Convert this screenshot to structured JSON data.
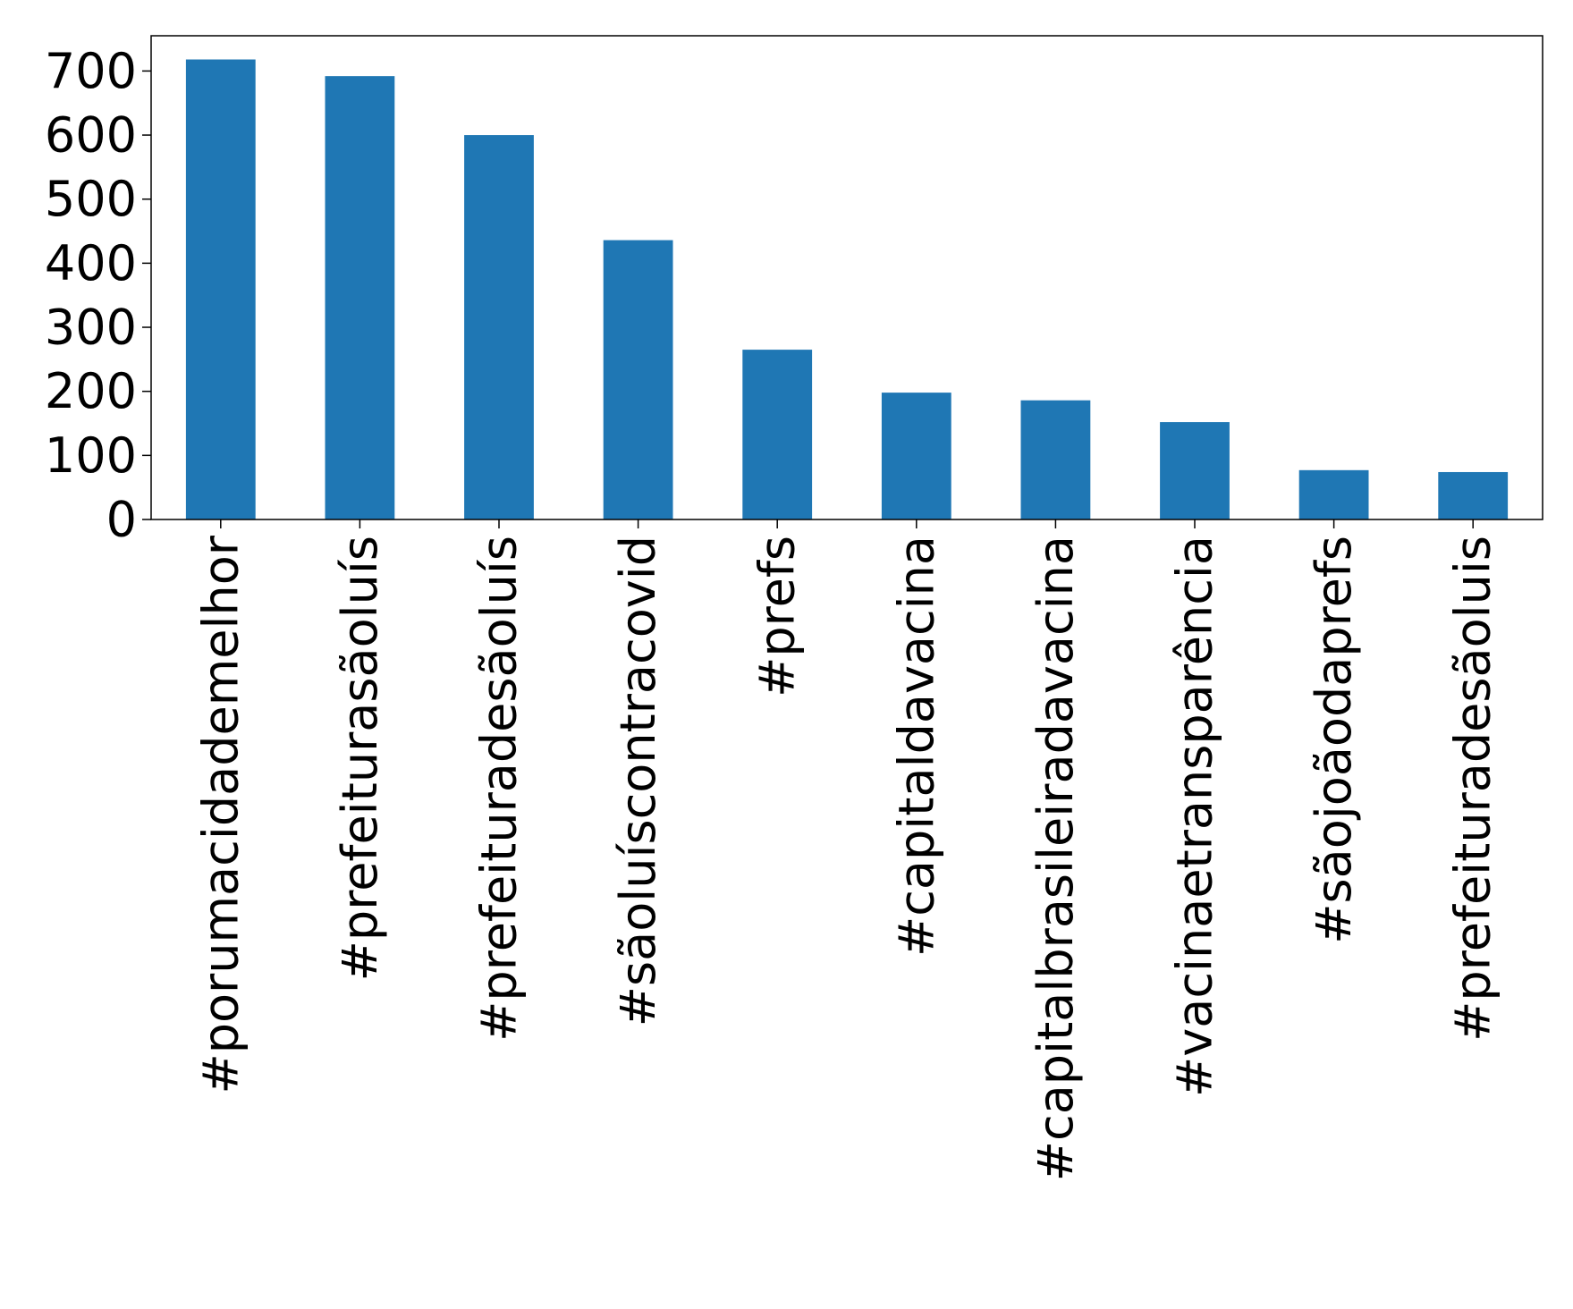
{
  "chart_data": {
    "type": "bar",
    "categories": [
      "#porumacidademelhor",
      "#prefeiturasãoluís",
      "#prefeituradesãoluís",
      "#sãoluíscontracovid",
      "#prefs",
      "#capitaldavacina",
      "#capitalbrasileiradavacina",
      "#vacinaetransparência",
      "#sãojoãodaprefs",
      "#prefeituradesãoluis"
    ],
    "values": [
      718,
      692,
      600,
      436,
      265,
      198,
      186,
      152,
      77,
      74
    ],
    "yticks": [
      0,
      100,
      200,
      300,
      400,
      500,
      600,
      700
    ],
    "ylim": [
      0,
      755
    ],
    "title": "",
    "xlabel": "",
    "ylabel": "",
    "bar_color": "#1f77b4",
    "grid": false,
    "legend": "none"
  }
}
